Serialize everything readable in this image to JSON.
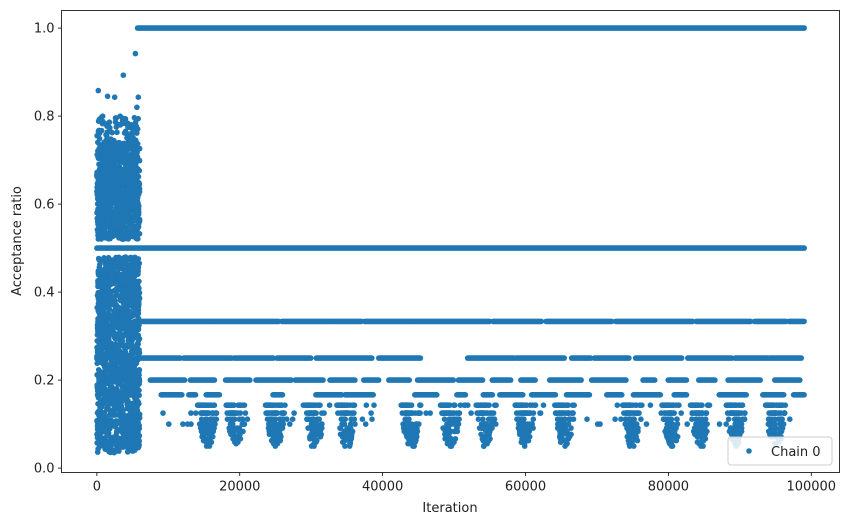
{
  "chart_data": {
    "type": "scatter",
    "title": "",
    "xlabel": "Iteration",
    "ylabel": "Acceptance ratio",
    "xlim": [
      -4950,
      103950
    ],
    "ylim": [
      -0.01,
      1.04
    ],
    "xticks": [
      0,
      20000,
      40000,
      60000,
      80000,
      100000
    ],
    "xtick_labels": [
      "0",
      "20000",
      "40000",
      "60000",
      "80000",
      "100000"
    ],
    "yticks": [
      0.0,
      0.2,
      0.4,
      0.6,
      0.8,
      1.0
    ],
    "ytick_labels": [
      "0.0",
      "0.2",
      "0.4",
      "0.6",
      "0.8",
      "1.0"
    ],
    "grid": false,
    "legend_position": "lower-right",
    "series": [
      {
        "name": "Chain 0",
        "color": "#1f77b4",
        "marker": "dot",
        "iterations": 99000,
        "burn_in": {
          "x_range": [
            0,
            6000
          ],
          "y_range": [
            0.035,
            0.94
          ],
          "dense_bands": [
            [
              0.05,
              0.48
            ],
            [
              0.52,
              0.74
            ]
          ],
          "outliers": [
            [
              200,
              0.858
            ],
            [
              1500,
              0.845
            ],
            [
              2500,
              0.843
            ],
            [
              3700,
              0.893
            ],
            [
              5400,
              0.942
            ],
            [
              5800,
              0.843
            ],
            [
              5600,
              0.82
            ],
            [
              600,
              0.79
            ],
            [
              3300,
              0.78
            ]
          ]
        },
        "stationary_levels": [
          {
            "y": 1.0,
            "coverage": "continuous from 5700 to 99000"
          },
          {
            "y": 0.5,
            "coverage": "continuous from 0 to 99000"
          },
          {
            "y": 0.3333,
            "coverage": "frequent, gaps from 6000 to 99000"
          },
          {
            "y": 0.25,
            "coverage": "frequent, gaps from 6000 to 99000"
          },
          {
            "y": 0.2,
            "coverage": "intermittent from 7500 to 99000"
          },
          {
            "y": 0.1667,
            "coverage": "intermittent from 9000 to 99000"
          },
          {
            "y": 0.1429,
            "coverage": "sparse clusters"
          },
          {
            "y": 0.125,
            "coverage": "sparse clusters"
          },
          {
            "y": 0.1111,
            "coverage": "sparse clusters"
          },
          {
            "y": 0.1,
            "coverage": "sparse clusters"
          },
          {
            "y": 0.0909,
            "coverage": "sparse clusters"
          },
          {
            "y": 0.0833,
            "coverage": "sparse clusters"
          },
          {
            "y": 0.0769,
            "coverage": "sparse clusters"
          },
          {
            "y": 0.0714,
            "coverage": "sparse clusters"
          },
          {
            "y": 0.0667,
            "coverage": "sparse clusters"
          },
          {
            "y": 0.0625,
            "coverage": "sparse clusters"
          },
          {
            "y": 0.0588,
            "coverage": "sparse clusters"
          },
          {
            "y": 0.0556,
            "coverage": "sparse clusters"
          },
          {
            "y": 0.05,
            "coverage": "rare"
          }
        ],
        "tail_clusters_x": [
          15500,
          19500,
          25000,
          30500,
          35000,
          44000,
          49500,
          54500,
          60000,
          65500,
          75000,
          80500,
          84500,
          89500,
          95000
        ]
      }
    ]
  }
}
